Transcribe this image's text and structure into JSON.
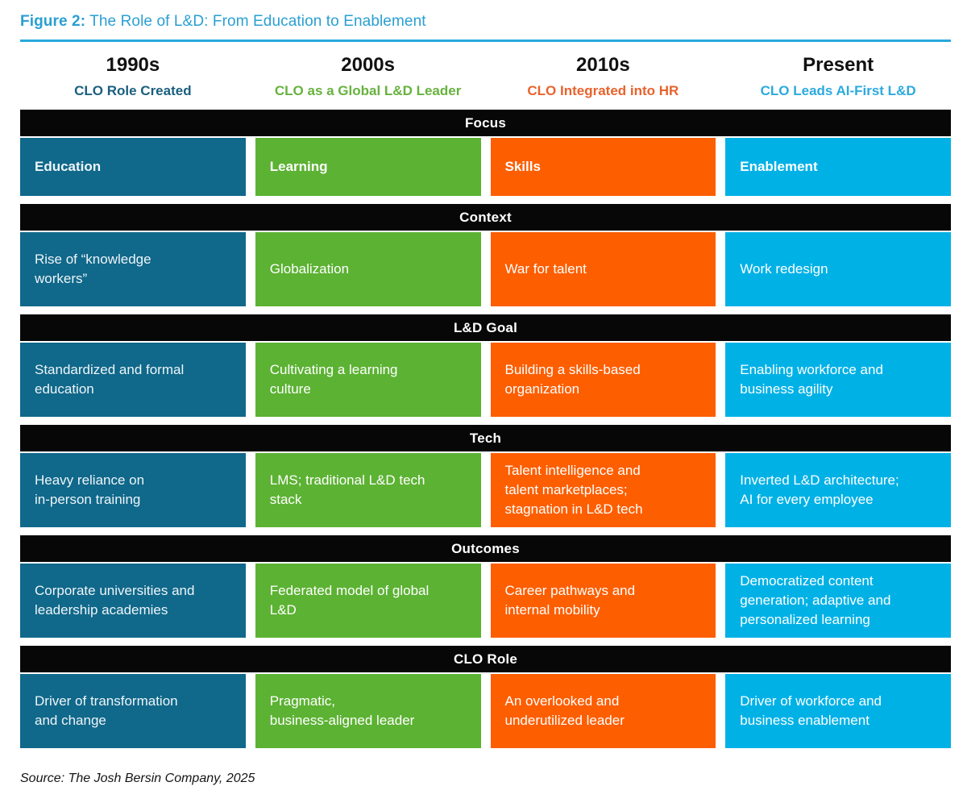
{
  "title": {
    "prefix": "Figure 2:",
    "text": " The Role of L&D: From Education to Enablement"
  },
  "colors": {
    "title_accent": "#2a9fd3",
    "rule": "#29a8dc",
    "band_background": "#070707",
    "column_teal": "#10688a",
    "column_green": "#5cb233",
    "column_orange": "#fd5e00",
    "column_cyan": "#00b1e6",
    "subtitle_teal": "#1a5f7f",
    "subtitle_green": "#67b23d",
    "subtitle_orange": "#e8632c",
    "subtitle_cyan": "#2caade"
  },
  "columns": [
    {
      "era": "1990s",
      "subtitle": "CLO Role Created"
    },
    {
      "era": "2000s",
      "subtitle": "CLO as a Global L&D Leader"
    },
    {
      "era": "2010s",
      "subtitle": "CLO Integrated into HR"
    },
    {
      "era": "Present",
      "subtitle": "CLO Leads AI-First L&D"
    }
  ],
  "sections": [
    {
      "label": "Focus",
      "cells": [
        "Education",
        "Learning",
        "Skills",
        "Enablement"
      ]
    },
    {
      "label": "Context",
      "cells": [
        "Rise of “knowledge\nworkers”",
        "Globalization",
        "War for talent",
        "Work redesign"
      ]
    },
    {
      "label": "L&D Goal",
      "cells": [
        "Standardized and formal\neducation",
        "Cultivating a learning\nculture",
        "Building a skills-based\norganization",
        "Enabling workforce and\nbusiness agility"
      ]
    },
    {
      "label": "Tech",
      "cells": [
        "Heavy reliance on\nin-person training",
        "LMS; traditional L&D tech\nstack",
        "Talent intelligence and\ntalent marketplaces;\nstagnation in L&D tech",
        "Inverted L&D architecture;\nAI for every employee"
      ]
    },
    {
      "label": "Outcomes",
      "cells": [
        "Corporate universities and\nleadership academies",
        "Federated model of global\nL&D",
        "Career pathways and\ninternal mobility",
        "Democratized content\ngeneration; adaptive and\npersonalized learning"
      ]
    },
    {
      "label": "CLO Role",
      "cells": [
        "Driver of transformation\nand change",
        "Pragmatic,\nbusiness-aligned leader",
        "An overlooked and\nunderutilized leader",
        "Driver of workforce and\nbusiness enablement"
      ]
    }
  ],
  "source": "Source: The Josh Bersin Company, 2025"
}
